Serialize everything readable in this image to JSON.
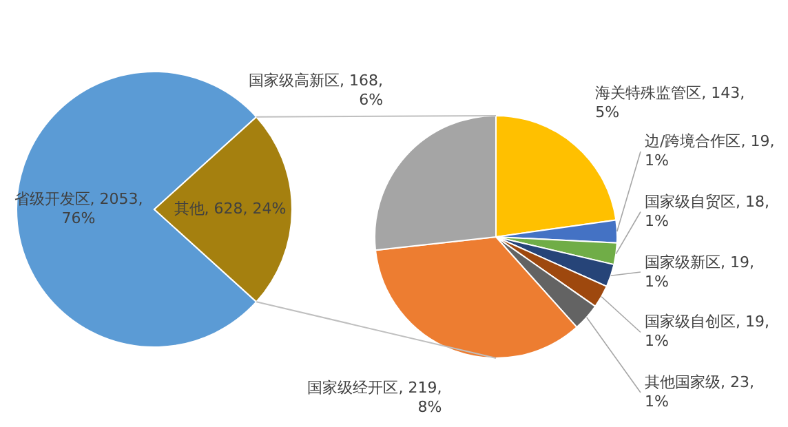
{
  "chart_data": [
    {
      "type": "pie",
      "categories": [
        "省级开发区",
        "其他"
      ],
      "values": [
        2053,
        628
      ],
      "colors": [
        "#5b9bd5",
        "#a5800f"
      ],
      "value_labels": [
        "2053, 76%",
        "628, 24%"
      ]
    },
    {
      "type": "pie",
      "categories": [
        "海关特殊监管区",
        "边/跨境合作区",
        "国家级自贸区",
        "国家级新区",
        "国家级自创区",
        "其他国家级",
        "国家级经开区",
        "国家级高新区"
      ],
      "values": [
        143,
        19,
        18,
        19,
        19,
        23,
        219,
        168
      ],
      "colors": [
        "#ffc000",
        "#4472c4",
        "#70ad47",
        "#264478",
        "#9e480e",
        "#636363",
        "#ed7d31",
        "#a5a5a5"
      ],
      "value_labels": [
        "143, 5%",
        "19, 1%",
        "18, 1%",
        "19, 1%",
        "19, 1%",
        "23, 1%",
        "219, 8%",
        "168, 6%"
      ]
    }
  ]
}
